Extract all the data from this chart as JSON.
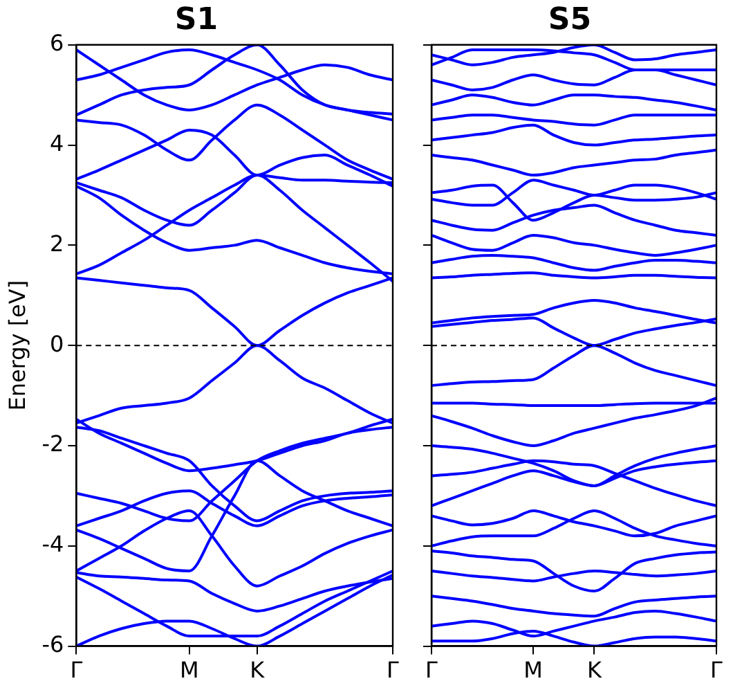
{
  "chart_data": [
    {
      "type": "line",
      "title": "S1",
      "ylabel": "Energy [eV]",
      "categories": [
        "Γ",
        null,
        null,
        null,
        null,
        "M",
        null,
        null,
        "K",
        null,
        null,
        null,
        null,
        null,
        "Γ"
      ],
      "ylim": [
        -6,
        6
      ],
      "yticks": [
        -6,
        -4,
        -2,
        0,
        2,
        4,
        6
      ],
      "grid": false,
      "legend": false,
      "marker": "none",
      "line_style": "solid",
      "ref_lines": [
        {
          "axis": "y",
          "value": 0,
          "color": "#000000",
          "line_style": "dashed"
        }
      ],
      "series": [
        {
          "color": "#0000ff",
          "values": [
            1.35,
            1.3,
            1.25,
            1.2,
            1.15,
            1.1,
            0.75,
            0.38,
            0,
            0.3,
            0.6,
            0.85,
            1.05,
            1.2,
            1.35
          ]
        },
        {
          "color": "#0000ff",
          "values": [
            1.43,
            1.6,
            1.85,
            2.1,
            2.4,
            2.7,
            2.95,
            3.2,
            3.4,
            3.35,
            3.3,
            3.3,
            3.28,
            3.26,
            3.25
          ]
        },
        {
          "color": "#0000ff",
          "values": [
            3.18,
            2.95,
            2.6,
            2.3,
            2.05,
            1.9,
            1.95,
            2.0,
            2.1,
            1.95,
            1.8,
            1.65,
            1.55,
            1.48,
            1.43
          ]
        },
        {
          "color": "#0000ff",
          "values": [
            3.25,
            3.1,
            2.95,
            2.7,
            2.5,
            2.4,
            2.7,
            3.05,
            3.4,
            3.1,
            2.7,
            2.35,
            2.0,
            1.65,
            1.28
          ]
        },
        {
          "color": "#0000ff",
          "values": [
            3.32,
            3.5,
            3.7,
            3.9,
            4.1,
            4.3,
            4.2,
            3.8,
            3.4,
            3.6,
            3.75,
            3.8,
            3.6,
            3.4,
            3.18
          ]
        },
        {
          "color": "#0000ff",
          "values": [
            4.5,
            4.45,
            4.4,
            4.2,
            3.9,
            3.7,
            4.1,
            4.5,
            4.8,
            4.6,
            4.3,
            4.0,
            3.7,
            3.5,
            3.32
          ]
        },
        {
          "color": "#0000ff",
          "values": [
            4.6,
            4.8,
            5.0,
            5.1,
            5.15,
            5.2,
            5.5,
            5.8,
            6.0,
            5.6,
            5.1,
            4.8,
            4.7,
            4.6,
            4.5
          ]
        },
        {
          "color": "#0000ff",
          "values": [
            5.3,
            5.4,
            5.55,
            5.7,
            5.85,
            5.9,
            5.8,
            5.65,
            5.5,
            5.3,
            5.0,
            4.8,
            4.7,
            4.65,
            4.62
          ]
        },
        {
          "color": "#0000ff",
          "values": [
            5.9,
            5.6,
            5.3,
            5.0,
            4.8,
            4.7,
            4.8,
            5.0,
            5.2,
            5.35,
            5.5,
            5.6,
            5.55,
            5.4,
            5.3
          ]
        },
        {
          "color": "#0000ff",
          "values": [
            -1.55,
            -1.4,
            -1.25,
            -1.2,
            -1.15,
            -1.05,
            -0.7,
            -0.35,
            0,
            -0.3,
            -0.65,
            -0.85,
            -1.1,
            -1.35,
            -1.55
          ]
        },
        {
          "color": "#0000ff",
          "values": [
            -1.47,
            -1.75,
            -1.95,
            -2.15,
            -2.35,
            -2.5,
            -2.45,
            -2.38,
            -2.3,
            -2.15,
            -2.0,
            -1.9,
            -1.75,
            -1.68,
            -1.63
          ]
        },
        {
          "color": "#0000ff",
          "values": [
            -1.63,
            -1.7,
            -1.85,
            -2.0,
            -2.15,
            -2.3,
            -2.8,
            -3.2,
            -3.5,
            -3.3,
            -3.1,
            -3.0,
            -2.95,
            -2.93,
            -2.9
          ]
        },
        {
          "color": "#0000ff",
          "values": [
            -2.95,
            -3.05,
            -3.15,
            -3.3,
            -3.45,
            -3.5,
            -3.1,
            -2.7,
            -2.3,
            -2.1,
            -1.95,
            -1.85,
            -1.75,
            -1.6,
            -1.47
          ]
        },
        {
          "color": "#0000ff",
          "values": [
            -3.6,
            -3.45,
            -3.3,
            -3.1,
            -2.95,
            -2.9,
            -3.15,
            -3.4,
            -3.6,
            -3.4,
            -3.2,
            -3.1,
            -3.05,
            -3.02,
            -2.98
          ]
        },
        {
          "color": "#0000ff",
          "values": [
            -3.68,
            -3.85,
            -4.05,
            -4.25,
            -4.45,
            -4.5,
            -3.8,
            -3.0,
            -2.3,
            -2.6,
            -2.9,
            -3.1,
            -3.3,
            -3.45,
            -3.6
          ]
        },
        {
          "color": "#0000ff",
          "values": [
            -4.5,
            -4.25,
            -4.0,
            -3.7,
            -3.45,
            -3.3,
            -3.8,
            -4.4,
            -4.8,
            -4.6,
            -4.4,
            -4.15,
            -3.95,
            -3.8,
            -3.68
          ]
        },
        {
          "color": "#0000ff",
          "values": [
            -4.53,
            -4.6,
            -4.62,
            -4.65,
            -4.68,
            -4.7,
            -4.95,
            -5.15,
            -5.3,
            -5.2,
            -5.05,
            -4.9,
            -4.8,
            -4.72,
            -4.65
          ]
        },
        {
          "color": "#0000ff",
          "values": [
            -4.62,
            -4.85,
            -5.1,
            -5.35,
            -5.6,
            -5.8,
            -5.8,
            -5.8,
            -5.8,
            -5.6,
            -5.35,
            -5.1,
            -4.9,
            -4.7,
            -4.5
          ]
        },
        {
          "color": "#0000ff",
          "values": [
            -6.0,
            -5.8,
            -5.65,
            -5.55,
            -5.5,
            -5.5,
            -5.65,
            -5.85,
            -6.0,
            -5.8,
            -5.55,
            -5.3,
            -5.05,
            -4.8,
            -4.58
          ]
        }
      ]
    },
    {
      "type": "line",
      "title": "S5",
      "categories": [
        "Γ",
        null,
        null,
        null,
        null,
        "M",
        null,
        null,
        "K",
        null,
        null,
        null,
        null,
        null,
        "Γ"
      ],
      "ylim": [
        -6,
        6
      ],
      "yticks": [
        -6,
        -4,
        -2,
        0,
        2,
        4,
        6
      ],
      "tick_labels": "x",
      "grid": false,
      "legend": false,
      "marker": "none",
      "line_style": "solid",
      "ref_lines": [
        {
          "axis": "y",
          "value": 0,
          "color": "#000000",
          "line_style": "dashed"
        }
      ],
      "series": [
        {
          "color": "#0000ff",
          "values": [
            0.45,
            0.5,
            0.55,
            0.58,
            0.6,
            0.62,
            0.75,
            0.85,
            0.9,
            0.85,
            0.75,
            0.68,
            0.6,
            0.52,
            0.45
          ]
        },
        {
          "color": "#0000ff",
          "values": [
            0.38,
            0.42,
            0.46,
            0.5,
            0.52,
            0.55,
            0.35,
            0.15,
            0,
            0.12,
            0.25,
            0.33,
            0.4,
            0.46,
            0.53
          ]
        },
        {
          "color": "#0000ff",
          "values": [
            1.35,
            1.37,
            1.4,
            1.42,
            1.44,
            1.45,
            1.4,
            1.37,
            1.35,
            1.37,
            1.4,
            1.4,
            1.38,
            1.36,
            1.35
          ]
        },
        {
          "color": "#0000ff",
          "values": [
            1.65,
            1.72,
            1.78,
            1.8,
            1.78,
            1.75,
            1.65,
            1.55,
            1.5,
            1.58,
            1.65,
            1.7,
            1.7,
            1.68,
            1.65
          ]
        },
        {
          "color": "#0000ff",
          "values": [
            2.2,
            2.05,
            1.92,
            1.9,
            2.05,
            2.2,
            2.15,
            2.05,
            2.0,
            1.92,
            1.85,
            1.8,
            1.85,
            1.92,
            2.0
          ]
        },
        {
          "color": "#0000ff",
          "values": [
            2.5,
            2.4,
            2.32,
            2.3,
            2.45,
            2.6,
            2.7,
            2.75,
            2.8,
            2.65,
            2.5,
            2.4,
            2.3,
            2.25,
            2.2
          ]
        },
        {
          "color": "#0000ff",
          "values": [
            3.05,
            3.1,
            3.18,
            3.2,
            2.85,
            2.5,
            2.65,
            2.85,
            3.0,
            2.95,
            2.9,
            2.9,
            2.92,
            2.96,
            3.05
          ]
        },
        {
          "color": "#0000ff",
          "values": [
            2.92,
            2.85,
            2.8,
            2.8,
            3.05,
            3.3,
            3.2,
            3.1,
            3.0,
            3.1,
            3.2,
            3.2,
            3.15,
            3.05,
            2.92
          ]
        },
        {
          "color": "#0000ff",
          "values": [
            3.8,
            3.75,
            3.7,
            3.6,
            3.5,
            3.4,
            3.45,
            3.55,
            3.6,
            3.65,
            3.7,
            3.72,
            3.8,
            3.85,
            3.9
          ]
        },
        {
          "color": "#0000ff",
          "values": [
            4.1,
            4.15,
            4.2,
            4.25,
            4.35,
            4.4,
            4.2,
            4.05,
            4.0,
            4.05,
            4.1,
            4.12,
            4.15,
            4.18,
            4.2
          ]
        },
        {
          "color": "#0000ff",
          "values": [
            4.5,
            4.55,
            4.6,
            4.6,
            4.55,
            4.5,
            4.47,
            4.42,
            4.4,
            4.5,
            4.6,
            4.6,
            4.6,
            4.6,
            4.6
          ]
        },
        {
          "color": "#0000ff",
          "values": [
            4.8,
            4.9,
            5.0,
            4.95,
            4.85,
            4.8,
            4.9,
            5.0,
            5.0,
            4.97,
            4.95,
            4.9,
            4.85,
            4.78,
            4.7
          ]
        },
        {
          "color": "#0000ff",
          "values": [
            5.3,
            5.2,
            5.1,
            5.15,
            5.3,
            5.4,
            5.3,
            5.22,
            5.2,
            5.35,
            5.5,
            5.5,
            5.4,
            5.3,
            5.2
          ]
        },
        {
          "color": "#0000ff",
          "values": [
            5.8,
            5.7,
            5.6,
            5.65,
            5.75,
            5.8,
            5.85,
            5.95,
            6.0,
            5.85,
            5.7,
            5.72,
            5.8,
            5.85,
            5.9
          ]
        },
        {
          "color": "#0000ff",
          "values": [
            5.6,
            5.75,
            5.9,
            5.9,
            5.9,
            5.9,
            5.88,
            5.84,
            5.8,
            5.65,
            5.5,
            5.5,
            5.5,
            5.5,
            5.5
          ]
        },
        {
          "color": "#0000ff",
          "values": [
            -0.8,
            -0.76,
            -0.73,
            -0.72,
            -0.7,
            -0.68,
            -0.45,
            -0.2,
            0,
            -0.15,
            -0.35,
            -0.5,
            -0.6,
            -0.7,
            -0.8
          ]
        },
        {
          "color": "#0000ff",
          "values": [
            -1.15,
            -1.15,
            -1.15,
            -1.17,
            -1.18,
            -1.2,
            -1.2,
            -1.2,
            -1.2,
            -1.18,
            -1.16,
            -1.15,
            -1.15,
            -1.15,
            -1.15
          ]
        },
        {
          "color": "#0000ff",
          "values": [
            -1.4,
            -1.52,
            -1.65,
            -1.8,
            -1.92,
            -2.0,
            -1.9,
            -1.75,
            -1.65,
            -1.55,
            -1.45,
            -1.38,
            -1.3,
            -1.2,
            -1.05
          ]
        },
        {
          "color": "#0000ff",
          "values": [
            -2.0,
            -2.03,
            -2.07,
            -2.15,
            -2.25,
            -2.35,
            -2.5,
            -2.7,
            -2.8,
            -2.6,
            -2.4,
            -2.25,
            -2.15,
            -2.07,
            -2.0
          ]
        },
        {
          "color": "#0000ff",
          "values": [
            -2.6,
            -2.57,
            -2.53,
            -2.45,
            -2.37,
            -2.3,
            -2.32,
            -2.37,
            -2.4,
            -2.55,
            -2.7,
            -2.85,
            -2.98,
            -3.1,
            -3.2
          ]
        },
        {
          "color": "#0000ff",
          "values": [
            -3.2,
            -3.05,
            -2.9,
            -2.75,
            -2.6,
            -2.5,
            -2.6,
            -2.72,
            -2.8,
            -2.65,
            -2.5,
            -2.42,
            -2.37,
            -2.33,
            -2.3
          ]
        },
        {
          "color": "#0000ff",
          "values": [
            -3.4,
            -3.5,
            -3.58,
            -3.55,
            -3.45,
            -3.3,
            -3.4,
            -3.52,
            -3.6,
            -3.7,
            -3.8,
            -3.75,
            -3.6,
            -3.5,
            -3.4
          ]
        },
        {
          "color": "#0000ff",
          "values": [
            -4.0,
            -3.9,
            -3.82,
            -3.8,
            -3.8,
            -3.8,
            -3.65,
            -3.45,
            -3.3,
            -3.45,
            -3.65,
            -3.8,
            -3.88,
            -3.95,
            -4.0
          ]
        },
        {
          "color": "#0000ff",
          "values": [
            -4.1,
            -4.14,
            -4.2,
            -4.23,
            -4.27,
            -4.3,
            -4.55,
            -4.8,
            -4.9,
            -4.65,
            -4.35,
            -4.25,
            -4.18,
            -4.14,
            -4.12
          ]
        },
        {
          "color": "#0000ff",
          "values": [
            -4.5,
            -4.55,
            -4.6,
            -4.63,
            -4.67,
            -4.7,
            -4.62,
            -4.55,
            -4.5,
            -4.53,
            -4.57,
            -4.6,
            -4.58,
            -4.55,
            -4.5
          ]
        },
        {
          "color": "#0000ff",
          "values": [
            -5.0,
            -5.05,
            -5.1,
            -5.17,
            -5.25,
            -5.3,
            -5.35,
            -5.38,
            -5.4,
            -5.25,
            -5.12,
            -5.08,
            -5.05,
            -5.02,
            -5.0
          ]
        },
        {
          "color": "#0000ff",
          "values": [
            -5.6,
            -5.55,
            -5.5,
            -5.55,
            -5.68,
            -5.8,
            -5.7,
            -5.6,
            -5.5,
            -5.42,
            -5.33,
            -5.3,
            -5.35,
            -5.42,
            -5.5
          ]
        },
        {
          "color": "#0000ff",
          "values": [
            -5.9,
            -5.9,
            -5.9,
            -5.85,
            -5.75,
            -5.7,
            -5.8,
            -5.92,
            -6.0,
            -5.93,
            -5.85,
            -5.82,
            -5.82,
            -5.85,
            -5.9
          ]
        }
      ]
    }
  ]
}
